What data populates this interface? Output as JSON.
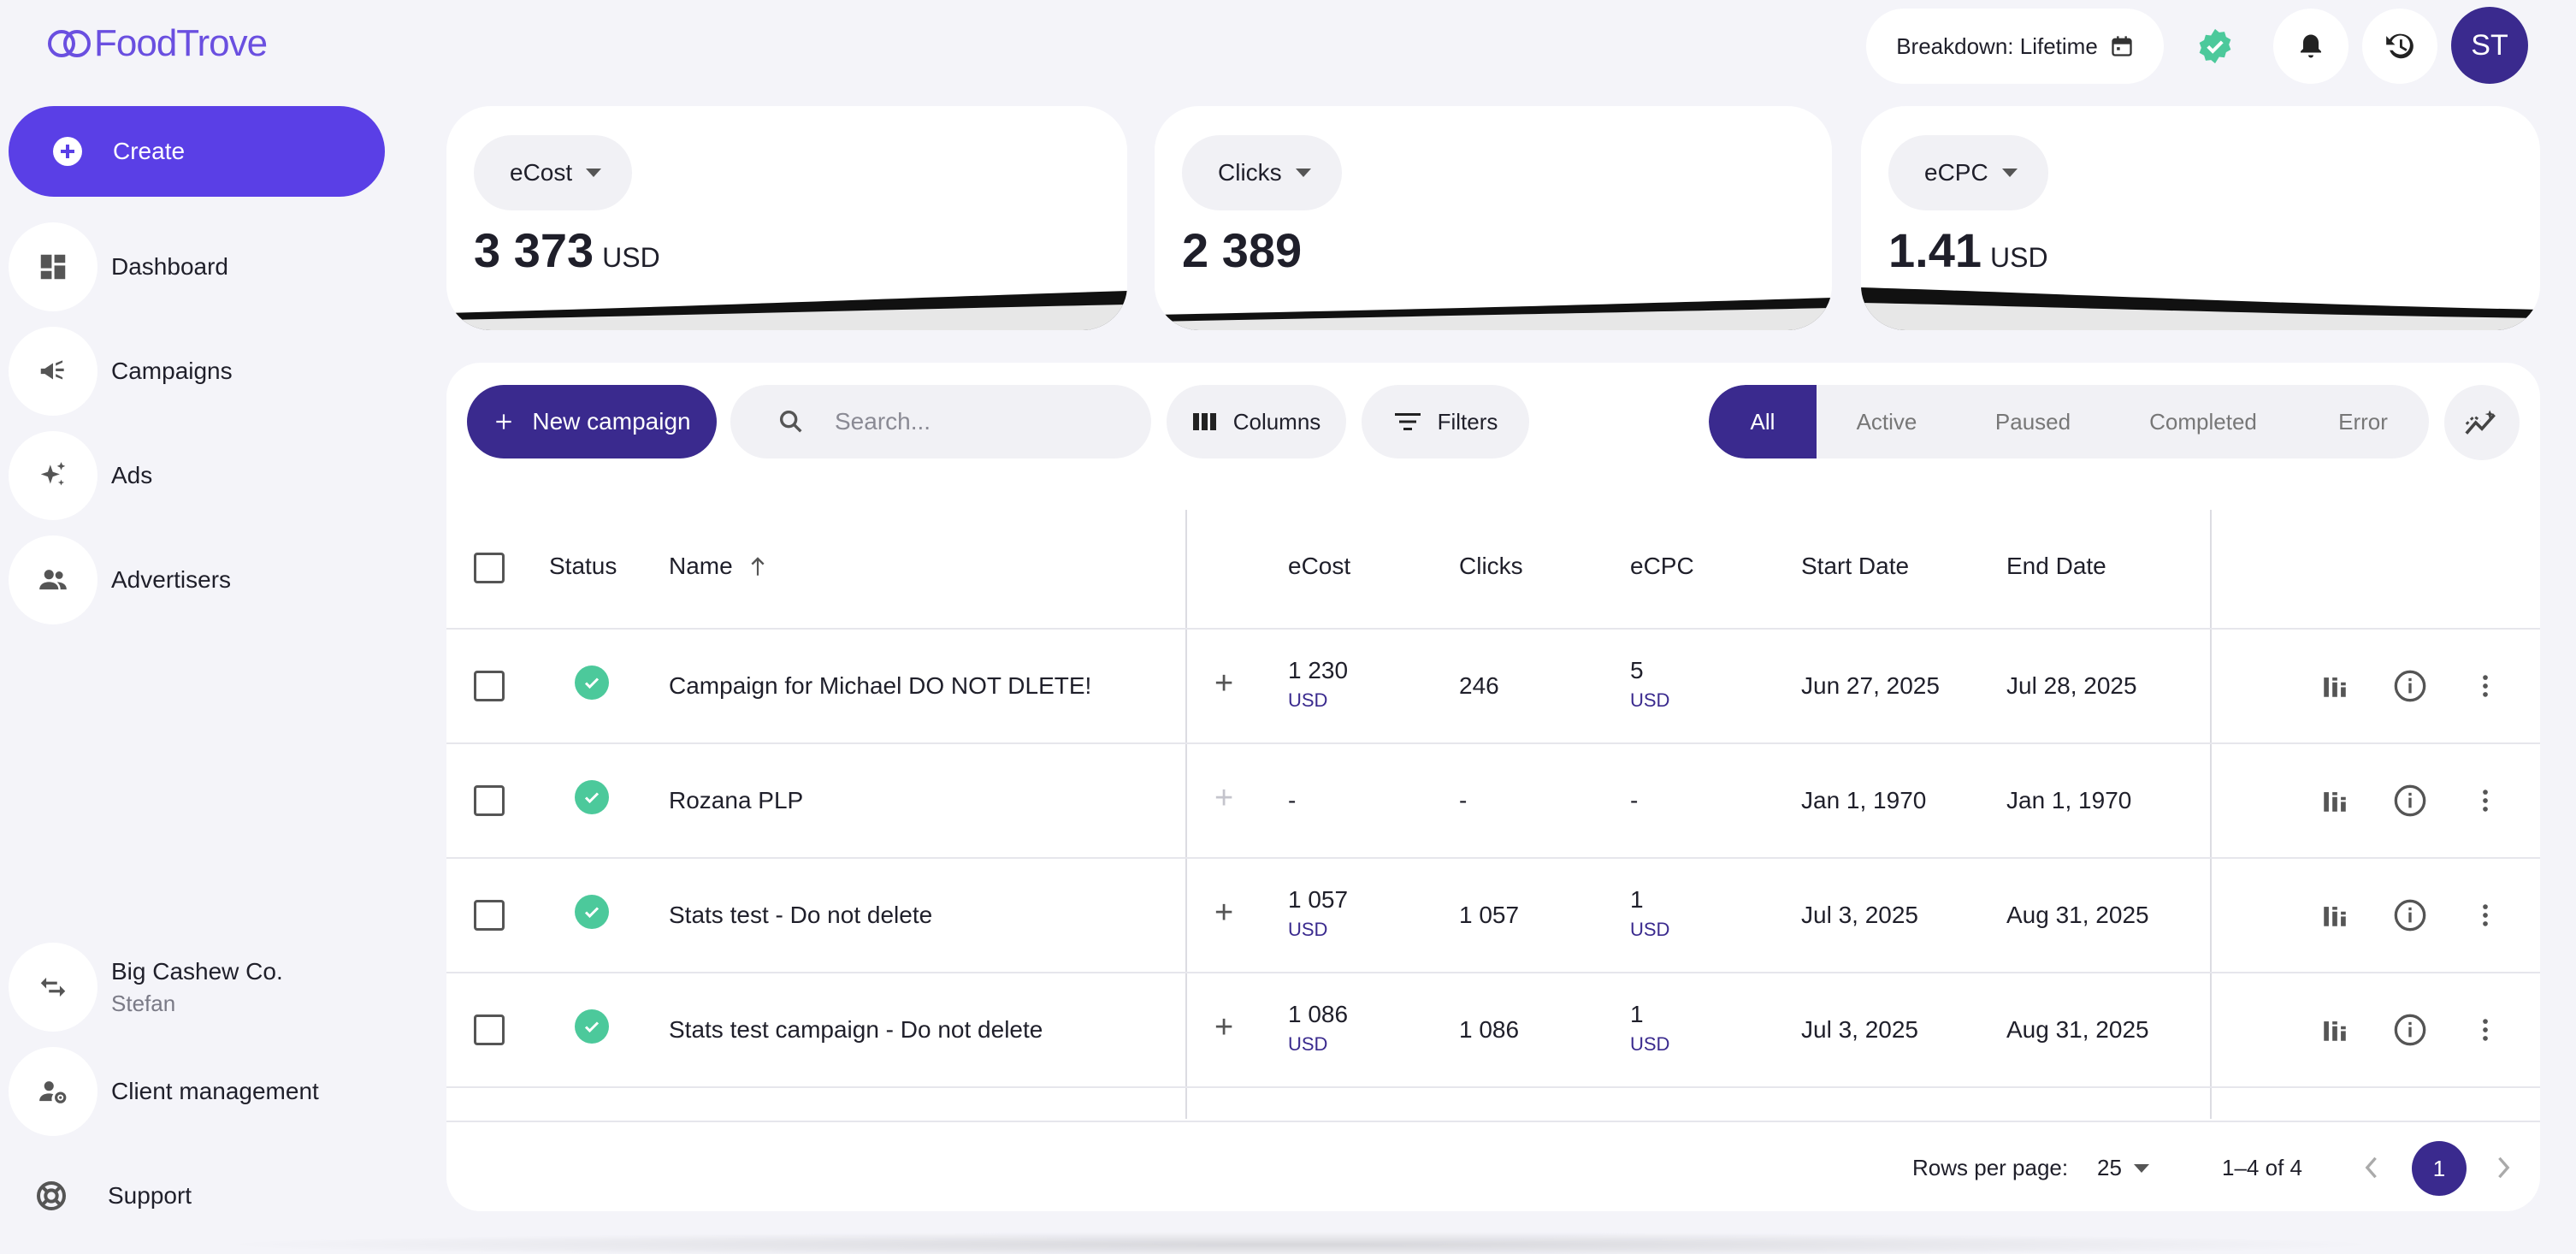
{
  "brand": {
    "name": "FoodTrove"
  },
  "sidebar": {
    "create_label": "Create",
    "items": [
      {
        "label": "Dashboard",
        "icon": "dashboard-icon"
      },
      {
        "label": "Campaigns",
        "icon": "megaphone-icon"
      },
      {
        "label": "Ads",
        "icon": "sparkle-icon"
      },
      {
        "label": "Advertisers",
        "icon": "people-icon"
      }
    ],
    "account": {
      "name": "Big Cashew Co.",
      "user": "Stefan",
      "icon": "swap-icon"
    },
    "client_management": "Client management",
    "support": "Support"
  },
  "topbar": {
    "breakdown_label": "Breakdown: Lifetime",
    "avatar_initials": "ST"
  },
  "metrics": [
    {
      "label": "eCost",
      "value": "3 373",
      "unit": "USD"
    },
    {
      "label": "Clicks",
      "value": "2 389",
      "unit": ""
    },
    {
      "label": "eCPC",
      "value": "1.41",
      "unit": "USD"
    }
  ],
  "toolbar": {
    "new_campaign": "New campaign",
    "search_placeholder": "Search...",
    "columns": "Columns",
    "filters": "Filters",
    "tabs": [
      "All",
      "Active",
      "Paused",
      "Completed",
      "Error"
    ],
    "active_tab": "All"
  },
  "table": {
    "headers": {
      "status": "Status",
      "name": "Name",
      "ecost": "eCost",
      "clicks": "Clicks",
      "ecpc": "eCPC",
      "start": "Start Date",
      "end": "End Date"
    },
    "rows": [
      {
        "name": "Campaign for Michael DO NOT DLETE!",
        "ecost": "1 230",
        "ecost_unit": "USD",
        "clicks": "246",
        "ecpc": "5",
        "ecpc_unit": "USD",
        "start": "Jun 27, 2025",
        "end": "Jul 28, 2025"
      },
      {
        "name": "Rozana PLP",
        "ecost": "-",
        "ecost_unit": "",
        "clicks": "-",
        "ecpc": "-",
        "ecpc_unit": "",
        "start": "Jan 1, 1970",
        "end": "Jan 1, 1970"
      },
      {
        "name": "Stats test - Do not delete",
        "ecost": "1 057",
        "ecost_unit": "USD",
        "clicks": "1 057",
        "ecpc": "1",
        "ecpc_unit": "USD",
        "start": "Jul 3, 2025",
        "end": "Aug 31, 2025"
      },
      {
        "name": "Stats test campaign - Do not delete",
        "ecost": "1 086",
        "ecost_unit": "USD",
        "clicks": "1 086",
        "ecpc": "1",
        "ecpc_unit": "USD",
        "start": "Jul 3, 2025",
        "end": "Aug 31, 2025"
      }
    ]
  },
  "pagination": {
    "rows_per_page_label": "Rows per page:",
    "rows_per_page": "25",
    "range": "1–4 of 4",
    "page": "1"
  },
  "colors": {
    "primary": "#5a3fe6",
    "dark_primary": "#3a2a8e",
    "success": "#4cc99b",
    "brand": "#6a4fe0"
  }
}
